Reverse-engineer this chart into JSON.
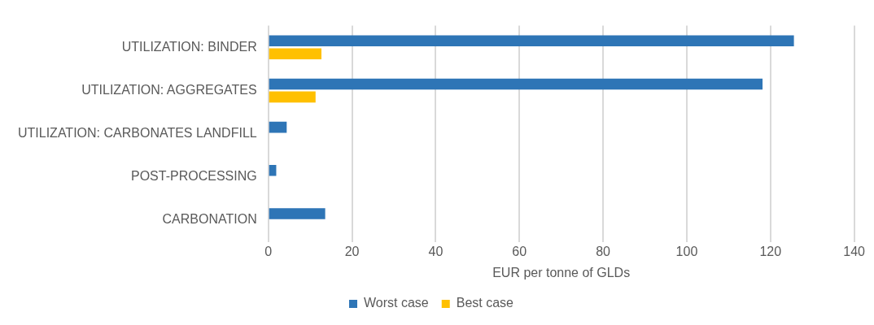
{
  "chart_data": {
    "type": "bar",
    "orientation": "horizontal",
    "xlabel": "EUR per tonne of GLDs",
    "categories": [
      "UTILIZATION: BINDER",
      "UTILIZATION: AGGREGATES",
      "UTILIZATION: CARBONATES LANDFILL",
      "POST-PROCESSING",
      "CARBONATION"
    ],
    "series": [
      {
        "name": "Worst case",
        "color": "#2e75b6",
        "values": [
          125.6,
          118.1,
          4.4,
          1.9,
          13.6
        ]
      },
      {
        "name": "Best case",
        "color": "#ffc000",
        "values": [
          12.7,
          11.3,
          null,
          null,
          null
        ]
      }
    ],
    "xlim": [
      0,
      140
    ],
    "xticks": [
      0,
      20,
      40,
      60,
      80,
      100,
      120,
      140
    ],
    "grid": "x",
    "legend": "bottom"
  }
}
